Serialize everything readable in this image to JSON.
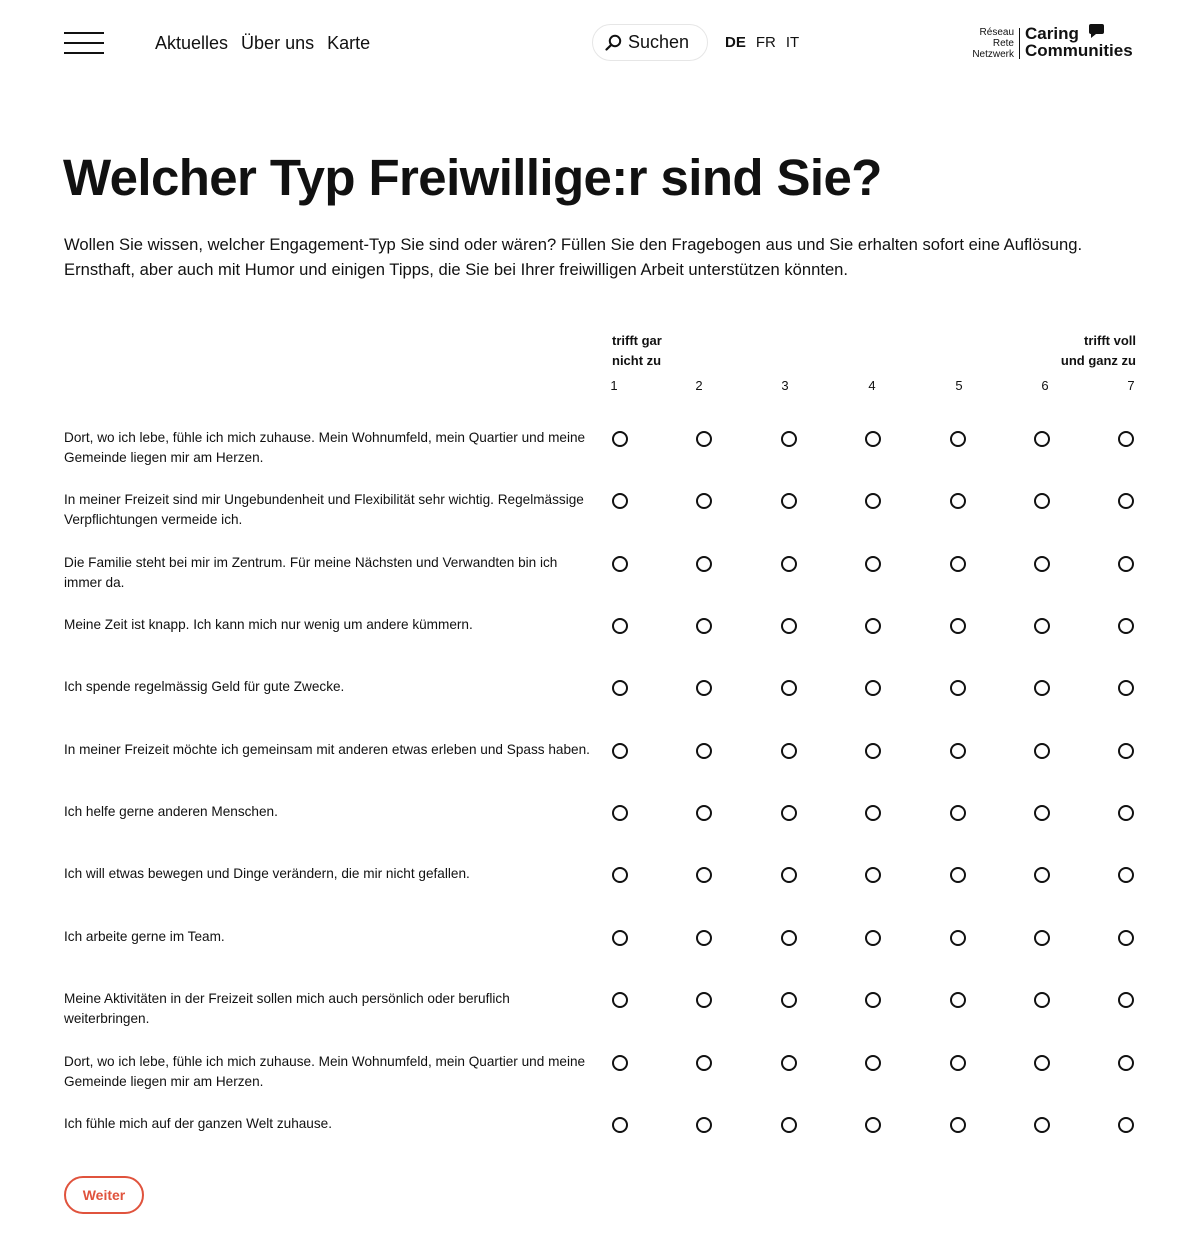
{
  "header": {
    "nav": [
      "Aktuelles",
      "Über uns",
      "Karte"
    ],
    "search_label": "Suchen",
    "languages": [
      {
        "code": "DE",
        "active": true
      },
      {
        "code": "FR",
        "active": false
      },
      {
        "code": "IT",
        "active": false
      }
    ],
    "logo": {
      "small_lines": [
        "Réseau",
        "Rete",
        "Netzwerk"
      ],
      "big_lines": [
        "Caring",
        "Communities"
      ]
    }
  },
  "page": {
    "title": "Welcher Typ Freiwillige:r sind Sie?",
    "intro": "Wollen Sie wissen, welcher Engagement-Typ Sie sind oder wären? Füllen Sie den Fragebogen aus und Sie erhalten sofort eine Auflösung. Ernsthaft, aber auch mit Humor und einigen Tipps, die Sie bei Ihrer freiwilligen Arbeit unterstützen könnten."
  },
  "scale": {
    "low_label_line1": "trifft gar",
    "low_label_line2": "nicht zu",
    "high_label_line1": "trifft voll",
    "high_label_line2": "und ganz zu",
    "values": [
      "1",
      "2",
      "3",
      "4",
      "5",
      "6",
      "7"
    ]
  },
  "questions": [
    "Dort, wo ich lebe, fühle ich mich zuhause. Mein Wohnumfeld, mein Quartier und meine Gemeinde liegen mir am Herzen.",
    "In meiner Freizeit sind mir Ungebundenheit und Flexibilität sehr wichtig. Regelmässige Verpflichtungen vermeide ich.",
    "Die Familie steht bei mir im Zentrum. Für meine Nächsten und Verwandten bin ich immer da.",
    "Meine Zeit ist knapp. Ich kann mich nur wenig um andere kümmern.",
    "Ich spende regelmässig Geld für gute Zwecke.",
    "In meiner Freizeit möchte ich gemeinsam mit anderen etwas erleben und Spass haben.",
    "Ich helfe gerne anderen Menschen.",
    "Ich will etwas bewegen und Dinge verändern, die mir nicht gefallen.",
    "Ich arbeite gerne im Team.",
    "Meine Aktivitäten in der Freizeit sollen mich auch persönlich oder beruflich weiterbringen.",
    "Dort, wo ich lebe, fühle ich mich zuhause. Mein Wohnumfeld, mein Quartier und meine Gemeinde liegen mir am Herzen.",
    "Ich fühle mich auf der ganzen Welt zuhause."
  ],
  "button_label": "Weiter",
  "colors": {
    "accent": "#e0533d",
    "text": "#111111",
    "background": "#ffffff"
  }
}
